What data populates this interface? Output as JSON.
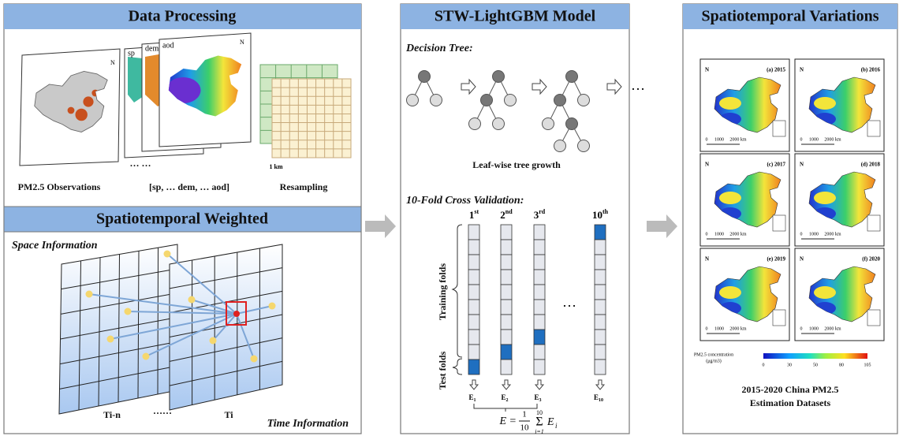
{
  "data_processing": {
    "title": "Data Processing",
    "layer_labels": [
      "sp",
      "dem",
      "aod"
    ],
    "north": "N",
    "scale": "1 km",
    "ellipsis": "… …",
    "labels": [
      "PM2.5 Observations",
      "[sp, … dem, … aod]",
      "Resampling"
    ]
  },
  "spatiotemporal_weighted": {
    "title": "Spatiotemporal Weighted",
    "space_label": "Space Information",
    "time_label": "Time Information",
    "planes": [
      "Ti-n",
      "Ti"
    ],
    "ellipsis": "……"
  },
  "model": {
    "title": "STW-LightGBM Model",
    "decision_tree": {
      "heading": "Decision Tree:",
      "ellipsis": "…",
      "caption": "Leaf-wise tree growth"
    },
    "cross_validation": {
      "heading": "10-Fold Cross Validation:",
      "folds": [
        {
          "number": "1",
          "suffix": "st",
          "error": "E",
          "error_index": "1"
        },
        {
          "number": "2",
          "suffix": "nd",
          "error": "E",
          "error_index": "2"
        },
        {
          "number": "3",
          "suffix": "rd",
          "error": "E",
          "error_index": "3"
        },
        {
          "number": "10",
          "suffix": "th",
          "error": "E",
          "error_index": "10"
        }
      ],
      "ellipsis": "…",
      "training_label": "Training folds",
      "test_label": "Test folds",
      "formula": {
        "lhs": "E =",
        "numerator": "1",
        "denominator": "10",
        "sum": "Σ",
        "sum_upper": "10",
        "sum_lower": "i=1",
        "term": "E",
        "term_index": "i"
      }
    }
  },
  "variations": {
    "title": "Spatiotemporal Variations",
    "maps": [
      "(a) 2015",
      "(b) 2016",
      "(c) 2017",
      "(d) 2018",
      "(e) 2019",
      "(f) 2020"
    ],
    "map_north": "N",
    "map_scale": [
      "0",
      "1000",
      "2000 km"
    ],
    "colorbar": {
      "label": "PM2.5 concentration",
      "unit": "(μg/m3)",
      "ticks": [
        "0",
        "30",
        "50",
        "80",
        "105"
      ]
    },
    "caption": [
      "2015-2020 China PM2.5",
      "Estimation Datasets"
    ]
  }
}
